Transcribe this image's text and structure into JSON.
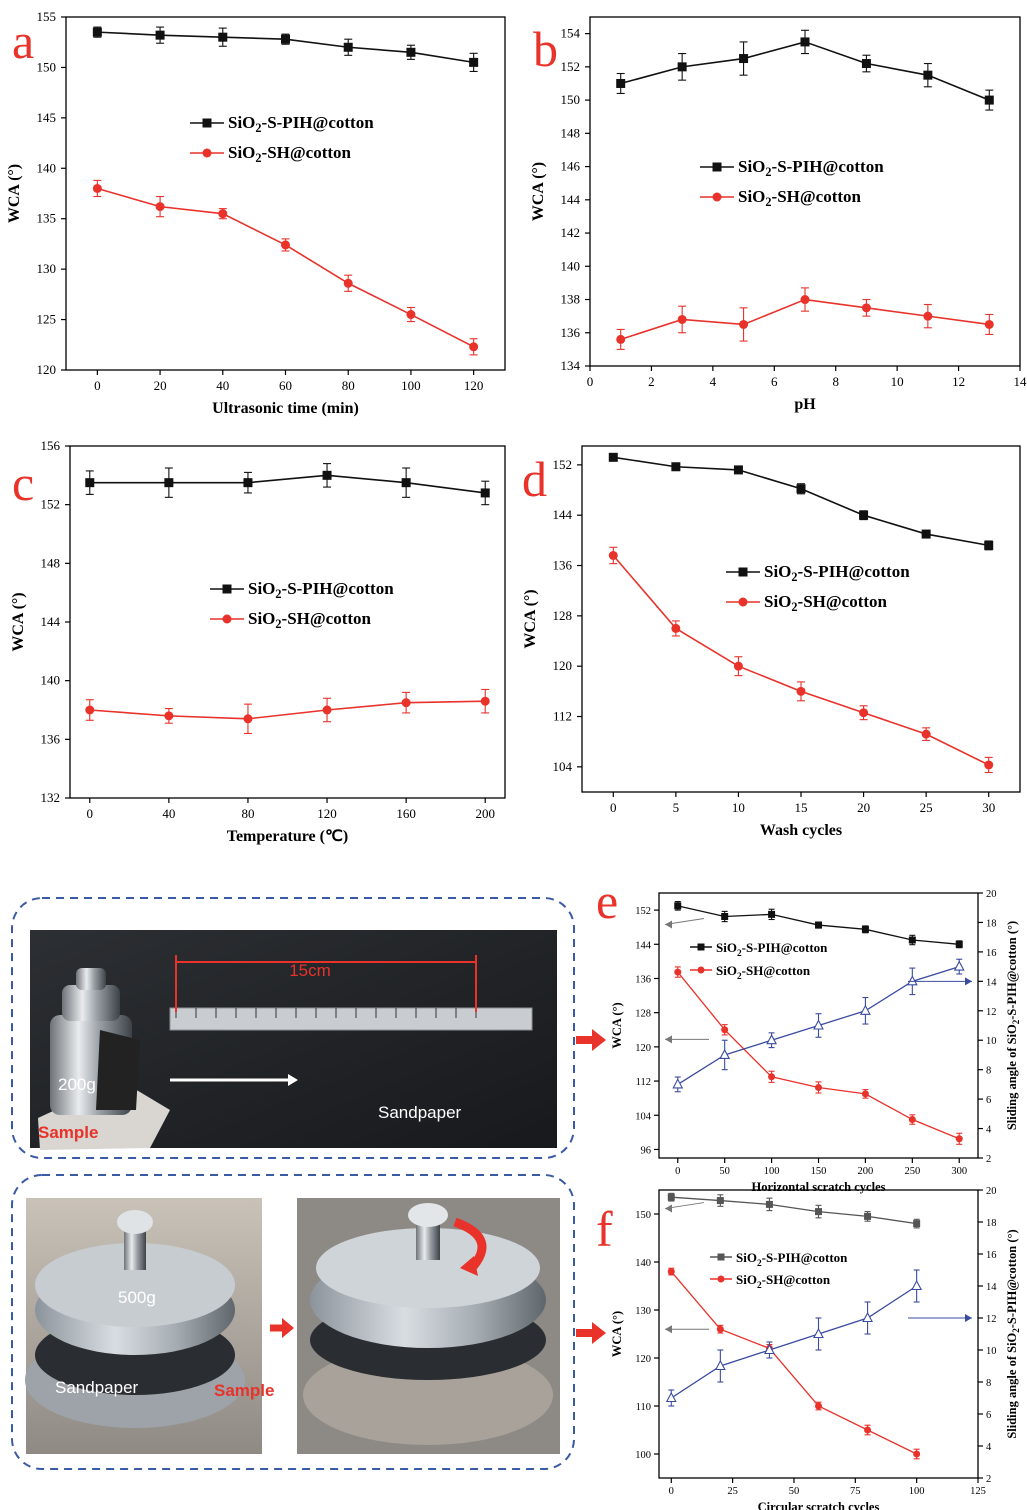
{
  "colors": {
    "black": "#111111",
    "red": "#e8322a",
    "blue": "#3a4ba0",
    "dashed": "#3b5aa6"
  },
  "photos": {
    "top": {
      "ruler_label": "15cm",
      "weight": "200g",
      "sample": "Sample",
      "sandpaper": "Sandpaper"
    },
    "bottom": {
      "weight": "500g",
      "sandpaper": "Sandpaper",
      "sample": "Sample"
    }
  },
  "chart_data": [
    {
      "id": "a",
      "panel_label": "a",
      "type": "line",
      "xlabel": "Ultrasonic time (min)",
      "ylabel": "WCA (°)",
      "xlim": [
        -10,
        130
      ],
      "ylim": [
        120,
        155
      ],
      "xticks": [
        0,
        20,
        40,
        60,
        80,
        100,
        120
      ],
      "yticks": [
        120,
        125,
        130,
        135,
        140,
        145,
        150,
        155
      ],
      "x": [
        0,
        20,
        40,
        60,
        80,
        100,
        120
      ],
      "series": [
        {
          "name": "SiO2-S-PIH@cotton",
          "marker": "square",
          "color": "#111111",
          "values": [
            153.5,
            153.2,
            153.0,
            152.8,
            152.0,
            151.5,
            150.5
          ],
          "err": [
            0.5,
            0.8,
            0.9,
            0.5,
            0.8,
            0.7,
            0.9
          ]
        },
        {
          "name": "SiO2-SH@cotton",
          "marker": "circle",
          "color": "#e8322a",
          "values": [
            138.0,
            136.2,
            135.5,
            132.4,
            128.6,
            125.5,
            122.3
          ],
          "err": [
            0.8,
            1.0,
            0.5,
            0.6,
            0.8,
            0.7,
            0.8
          ]
        }
      ],
      "legend": "center"
    },
    {
      "id": "b",
      "panel_label": "b",
      "type": "line",
      "xlabel": "pH",
      "ylabel": "WCA (°)",
      "xlim": [
        0,
        14
      ],
      "ylim": [
        134,
        155
      ],
      "xticks": [
        0,
        2,
        4,
        6,
        8,
        10,
        12,
        14
      ],
      "yticks": [
        134,
        136,
        138,
        140,
        142,
        144,
        146,
        148,
        150,
        152,
        154
      ],
      "x": [
        1,
        3,
        5,
        7,
        9,
        11,
        13
      ],
      "series": [
        {
          "name": "SiO2-S-PIH@cotton",
          "marker": "square",
          "color": "#111111",
          "values": [
            151.0,
            152.0,
            152.5,
            153.5,
            152.2,
            151.5,
            150.0
          ],
          "err": [
            0.6,
            0.8,
            1.0,
            0.7,
            0.5,
            0.7,
            0.6
          ]
        },
        {
          "name": "SiO2-SH@cotton",
          "marker": "circle",
          "color": "#e8322a",
          "values": [
            135.6,
            136.8,
            136.5,
            138.0,
            137.5,
            137.0,
            136.5
          ],
          "err": [
            0.6,
            0.8,
            1.0,
            0.7,
            0.5,
            0.7,
            0.6
          ]
        }
      ],
      "legend": "center"
    },
    {
      "id": "c",
      "panel_label": "c",
      "type": "line",
      "xlabel": "Temperature (℃)",
      "ylabel": "WCA (°)",
      "xlim": [
        -10,
        210
      ],
      "ylim": [
        132,
        156
      ],
      "xticks": [
        0,
        40,
        80,
        120,
        160,
        200
      ],
      "yticks": [
        132,
        136,
        140,
        144,
        148,
        152,
        156
      ],
      "x": [
        0,
        40,
        80,
        120,
        160,
        200
      ],
      "series": [
        {
          "name": "SiO2-S-PIH@cotton",
          "marker": "square",
          "color": "#111111",
          "values": [
            153.5,
            153.5,
            153.5,
            154.0,
            153.5,
            152.8
          ],
          "err": [
            0.8,
            1.0,
            0.7,
            0.8,
            1.0,
            0.8
          ]
        },
        {
          "name": "SiO2-SH@cotton",
          "marker": "circle",
          "color": "#e8322a",
          "values": [
            138.0,
            137.6,
            137.4,
            138.0,
            138.5,
            138.6
          ],
          "err": [
            0.7,
            0.5,
            1.0,
            0.8,
            0.7,
            0.8
          ]
        }
      ],
      "legend": "center"
    },
    {
      "id": "d",
      "panel_label": "d",
      "type": "line",
      "xlabel": "Wash cycles",
      "ylabel": "WCA (°)",
      "xlim": [
        -2.5,
        32.5
      ],
      "ylim": [
        100,
        155
      ],
      "xticks": [
        0,
        5,
        10,
        15,
        20,
        25,
        30
      ],
      "yticks": [
        104,
        112,
        120,
        128,
        136,
        144,
        152
      ],
      "x": [
        0,
        5,
        10,
        15,
        20,
        25,
        30
      ],
      "series": [
        {
          "name": "SiO2-S-PIH@cotton",
          "marker": "square",
          "color": "#111111",
          "values": [
            153.2,
            151.7,
            151.2,
            148.2,
            144.0,
            141.0,
            139.2
          ],
          "err": [
            0.5,
            0.5,
            0.5,
            0.8,
            0.7,
            0.5,
            0.7
          ]
        },
        {
          "name": "SiO2-SH@cotton",
          "marker": "circle",
          "color": "#e8322a",
          "values": [
            137.6,
            126.0,
            120.0,
            116.0,
            112.6,
            109.2,
            104.3
          ],
          "err": [
            1.3,
            1.2,
            1.5,
            1.5,
            1.1,
            1.0,
            1.2
          ]
        }
      ],
      "legend": "center"
    },
    {
      "id": "e",
      "panel_label": "e",
      "type": "line",
      "xlabel": "Horizontal scratch cycles",
      "ylabel": "WCA (°)",
      "ylabel2": "Sliding angle of SiO2-S-PIH@cotton (°)",
      "xlim": [
        -20,
        320
      ],
      "ylim": [
        94,
        156
      ],
      "ylim2": [
        2,
        20
      ],
      "xticks": [
        0,
        50,
        100,
        150,
        200,
        250,
        300
      ],
      "yticks": [
        96,
        104,
        112,
        120,
        128,
        136,
        144,
        152
      ],
      "yticks2": [
        2,
        4,
        6,
        8,
        10,
        12,
        14,
        16,
        18,
        20
      ],
      "x": [
        0,
        50,
        100,
        150,
        200,
        250,
        300
      ],
      "series": [
        {
          "name": "SiO2-S-PIH@cotton",
          "marker": "square",
          "color": "#111111",
          "axis": "left",
          "values": [
            153.0,
            150.5,
            151.0,
            148.5,
            147.5,
            145.0,
            144.0
          ],
          "err": [
            1.0,
            1.2,
            1.2,
            0.7,
            0.8,
            1.1,
            0.8
          ]
        },
        {
          "name": "SiO2-SH@cotton",
          "marker": "circle",
          "color": "#e8322a",
          "axis": "left",
          "values": [
            137.5,
            124.0,
            113.0,
            110.5,
            109.0,
            103.0,
            98.5
          ],
          "err": [
            1.2,
            1.2,
            1.3,
            1.3,
            1.0,
            1.1,
            1.3
          ]
        },
        {
          "name": "",
          "marker": "triangle-open",
          "color": "#3a4ba0",
          "axis": "right",
          "values": [
            7.0,
            9.0,
            10.0,
            11.0,
            12.0,
            14.0,
            15.0
          ],
          "err": [
            0.5,
            1.0,
            0.5,
            0.8,
            0.9,
            0.9,
            0.5
          ]
        }
      ],
      "legend": "upper-center"
    },
    {
      "id": "f",
      "panel_label": "f",
      "type": "line",
      "xlabel": "Circular scratch cycles",
      "ylabel": "WCA (°)",
      "ylabel2": "Sliding angle of SiO2-S-PIH@cotton (°)",
      "xlim": [
        -5,
        125
      ],
      "ylim": [
        95,
        155
      ],
      "ylim2": [
        2,
        20
      ],
      "xticks": [
        0,
        25,
        50,
        75,
        100,
        125
      ],
      "yticks": [
        100,
        110,
        120,
        130,
        140,
        150
      ],
      "yticks2": [
        2,
        4,
        6,
        8,
        10,
        12,
        14,
        16,
        18,
        20
      ],
      "x": [
        0,
        20,
        40,
        60,
        80,
        100
      ],
      "series": [
        {
          "name": "SiO2-S-PIH@cotton",
          "marker": "square",
          "color": "#555555",
          "axis": "left",
          "values": [
            153.5,
            152.8,
            152.0,
            150.5,
            149.5,
            148.0
          ],
          "err": [
            0.8,
            1.2,
            1.3,
            1.3,
            1.0,
            0.9
          ]
        },
        {
          "name": "SiO2-SH@cotton",
          "marker": "circle",
          "color": "#e8322a",
          "axis": "left",
          "values": [
            138.0,
            126.0,
            122.0,
            110.0,
            105.0,
            100.0
          ],
          "err": [
            0.7,
            0.8,
            0.8,
            0.8,
            1.0,
            1.0
          ]
        },
        {
          "name": "",
          "marker": "triangle-open",
          "color": "#3a4ba0",
          "axis": "right",
          "values": [
            7.0,
            9.0,
            10.0,
            11.0,
            12.0,
            14.0
          ],
          "err": [
            0.5,
            1.0,
            0.5,
            1.0,
            1.0,
            1.0
          ]
        }
      ],
      "legend": "upper-center"
    }
  ]
}
